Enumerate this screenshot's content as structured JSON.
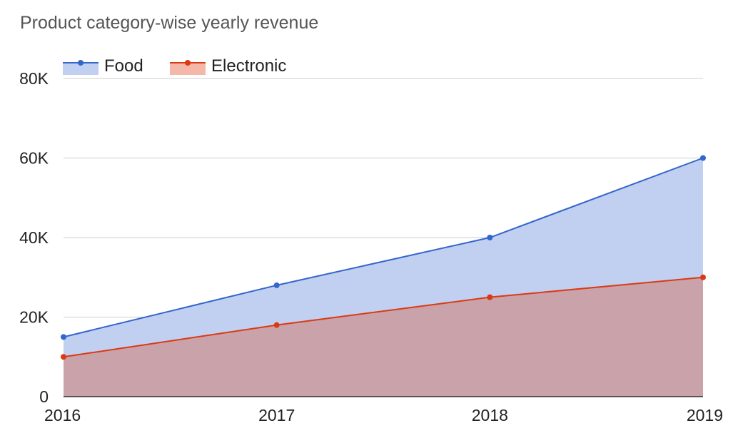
{
  "chart_data": {
    "type": "area",
    "title": "Product category-wise yearly revenue",
    "xlabel": "",
    "ylabel": "",
    "categories": [
      "2016",
      "2017",
      "2018",
      "2019"
    ],
    "series": [
      {
        "name": "Food",
        "values": [
          15000,
          28000,
          40000,
          60000
        ],
        "color": "#3366cc",
        "fill": "#c1cff0"
      },
      {
        "name": "Electronic",
        "values": [
          10000,
          18000,
          25000,
          30000
        ],
        "color": "#dc3912",
        "fill": "#c9a2aa"
      }
    ],
    "ylim": [
      0,
      80000
    ],
    "yticks": [
      0,
      20000,
      40000,
      60000,
      80000
    ],
    "ytick_labels": [
      "0",
      "20K",
      "40K",
      "60K",
      "80K"
    ],
    "grid": true,
    "legend": "top-left"
  }
}
